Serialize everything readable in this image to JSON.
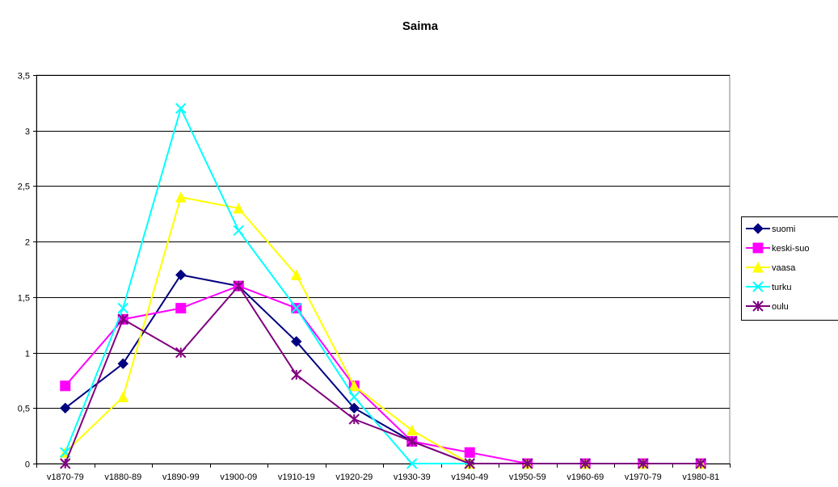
{
  "chart_data": {
    "type": "line",
    "title": "Saima",
    "xlabel": "",
    "ylabel": "",
    "categories": [
      "v1870-79",
      "v1880-89",
      "v1890-99",
      "v1900-09",
      "v1910-19",
      "v1920-29",
      "v1930-39",
      "v1940-49",
      "v1950-59",
      "v1960-69",
      "v1970-79",
      "v1980-81"
    ],
    "ylim": [
      0,
      3.5
    ],
    "yticks": [
      "0",
      "0,5",
      "1",
      "1,5",
      "2",
      "2,5",
      "3",
      "3,5"
    ],
    "grid": true,
    "legend_position": "right",
    "series": [
      {
        "name": "suomi",
        "color": "#000080",
        "marker": "diamond",
        "values": [
          0.5,
          0.9,
          1.7,
          1.6,
          1.1,
          0.5,
          0.2,
          0,
          0,
          0,
          0,
          0
        ]
      },
      {
        "name": "keski-suo",
        "color": "#ff00ff",
        "marker": "square",
        "values": [
          0.7,
          1.3,
          1.4,
          1.6,
          1.4,
          0.7,
          0.2,
          0.1,
          0,
          0,
          0,
          0
        ]
      },
      {
        "name": "vaasa",
        "color": "#ffff00",
        "marker": "triangle",
        "values": [
          0.1,
          0.6,
          2.4,
          2.3,
          1.7,
          0.7,
          0.3,
          0,
          0,
          0,
          0,
          0
        ]
      },
      {
        "name": "turku",
        "color": "#00ffff",
        "marker": "x",
        "values": [
          0.1,
          1.4,
          3.2,
          2.1,
          1.4,
          0.6,
          0,
          0,
          0,
          0,
          0,
          0
        ]
      },
      {
        "name": "oulu",
        "color": "#800080",
        "marker": "asterisk",
        "values": [
          0,
          1.3,
          1.0,
          1.6,
          0.8,
          0.4,
          0.2,
          0,
          0,
          0,
          0,
          0
        ]
      }
    ]
  }
}
